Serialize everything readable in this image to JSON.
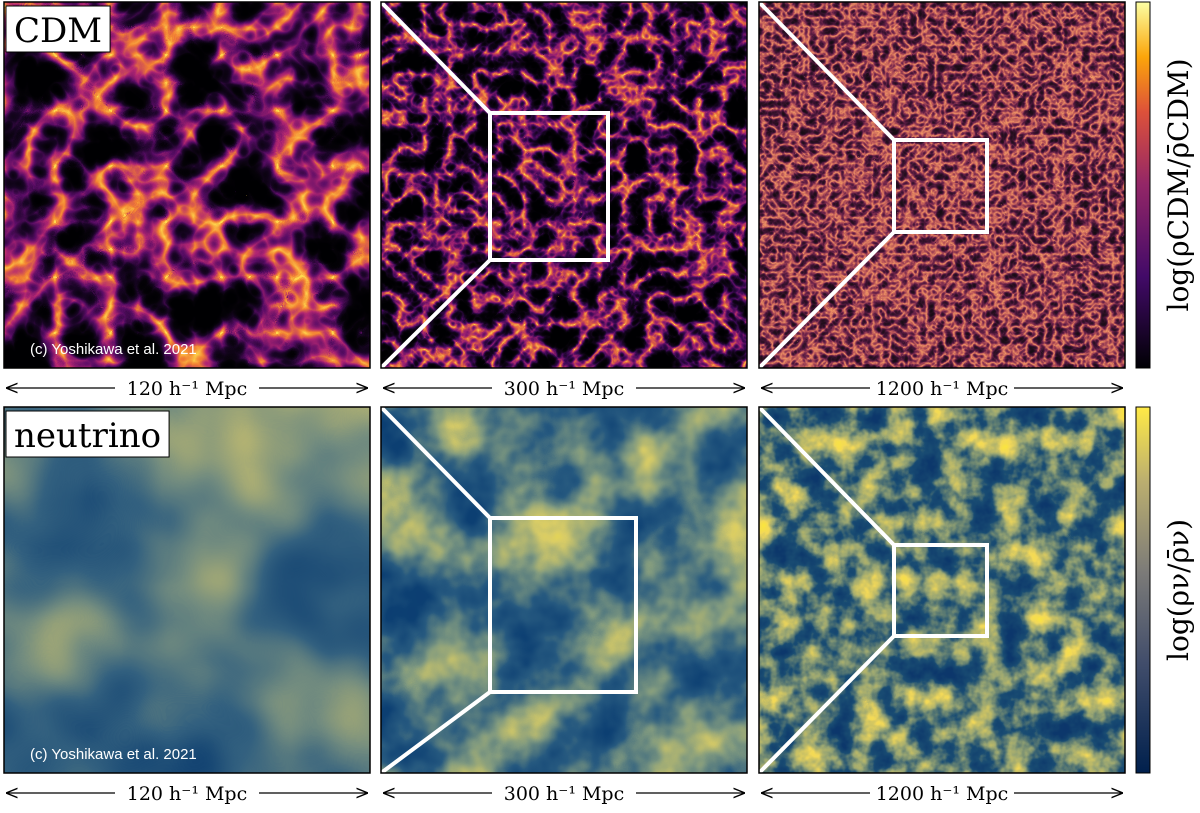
{
  "rows": [
    {
      "label": "CDM",
      "credit": "(c) Yoshikawa et al. 2021",
      "colorbar_label": "log(ρCDM/ρ̄CDM)",
      "panels": [
        {
          "scale": "120 h⁻¹ Mpc"
        },
        {
          "scale": "300 h⁻¹ Mpc"
        },
        {
          "scale": "1200 h⁻¹ Mpc"
        }
      ]
    },
    {
      "label": "neutrino",
      "credit": "(c) Yoshikawa et al. 2021",
      "colorbar_label": "log(ρν/ρ̄ν)",
      "panels": [
        {
          "scale": "120 h⁻¹ Mpc"
        },
        {
          "scale": "300 h⁻¹ Mpc"
        },
        {
          "scale": "1200 h⁻¹ Mpc"
        }
      ]
    }
  ]
}
